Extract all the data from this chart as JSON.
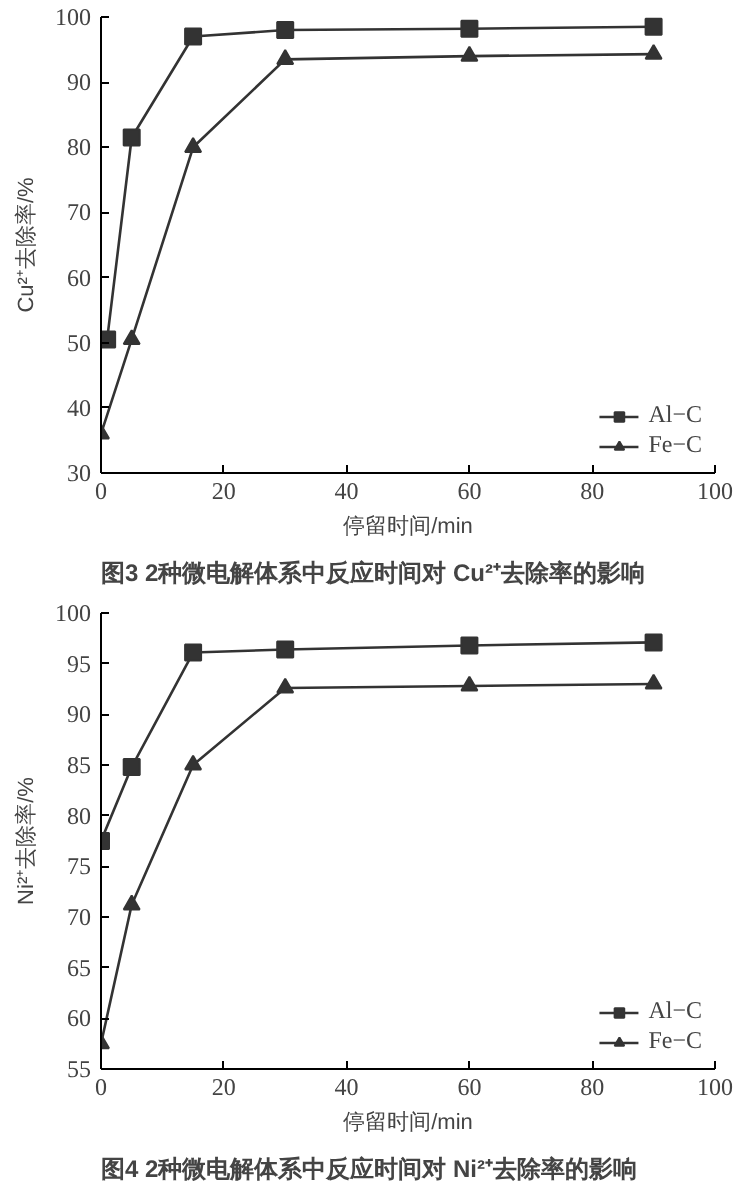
{
  "chart_data": [
    {
      "type": "line",
      "ylabel": "Cu²⁺去除率/%",
      "xlabel": "停留时间/min",
      "annotations": [
        "图3  2种微电解体系中反应时间对 Cu²⁺去除率的影响"
      ],
      "xlim": [
        0,
        100
      ],
      "ylim": [
        30,
        100
      ],
      "xticks": [
        0,
        20,
        40,
        60,
        80,
        100
      ],
      "yticks": [
        30,
        40,
        50,
        60,
        70,
        80,
        90,
        100
      ],
      "grid": false,
      "legend": "bottom right",
      "line_style": "solid",
      "series": [
        {
          "name": "Al−C",
          "color": "#333333",
          "marker": "square",
          "x": [
            1,
            5,
            15,
            30,
            60,
            90
          ],
          "values": [
            50.5,
            81.5,
            97,
            98,
            98.2,
            98.5
          ]
        },
        {
          "name": "Fe−C",
          "color": "#333333",
          "marker": "triangle",
          "x": [
            0,
            5,
            15,
            30,
            60,
            90
          ],
          "values": [
            36,
            50.5,
            80,
            93.5,
            94,
            94.3
          ]
        }
      ]
    },
    {
      "type": "line",
      "ylabel": "Ni²⁺去除率/%",
      "xlabel": "停留时间/min",
      "annotations": [
        "图4  2种微电解体系中反应时间对 Ni²⁺去除率的影响"
      ],
      "xlim": [
        0,
        100
      ],
      "ylim": [
        55,
        100
      ],
      "xticks": [
        0,
        20,
        40,
        60,
        80,
        100
      ],
      "yticks": [
        55,
        60,
        65,
        70,
        75,
        80,
        85,
        90,
        95,
        100
      ],
      "grid": false,
      "legend": "bottom right",
      "line_style": "solid",
      "series": [
        {
          "name": "Al−C",
          "color": "#333333",
          "marker": "square",
          "x": [
            0,
            5,
            15,
            30,
            60,
            90
          ],
          "values": [
            77.5,
            84.8,
            96.1,
            96.4,
            96.8,
            97.1
          ]
        },
        {
          "name": "Fe−C",
          "color": "#333333",
          "marker": "triangle",
          "x": [
            0,
            5,
            15,
            30,
            60,
            90
          ],
          "values": [
            57.5,
            71.2,
            85,
            92.6,
            92.8,
            93
          ]
        }
      ]
    }
  ]
}
